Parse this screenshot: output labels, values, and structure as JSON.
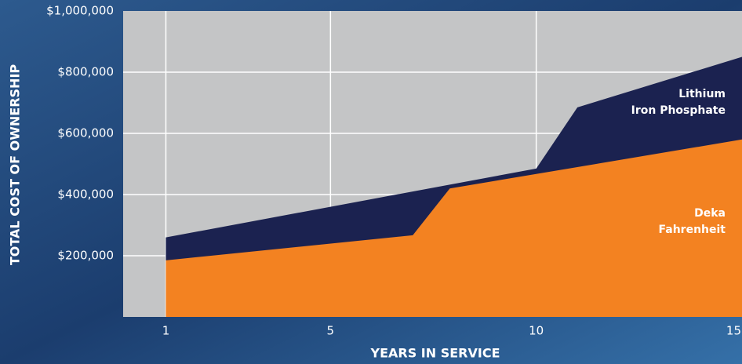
{
  "chart_data": {
    "type": "area",
    "x_label": "YEARS IN SERVICE",
    "y_label": "TOTAL COST OF OWNERSHIP",
    "xlim": [
      0,
      15
    ],
    "xticks": [
      1,
      5,
      10,
      15
    ],
    "ylim": [
      0,
      1000000
    ],
    "yticks": [
      {
        "value": 200000,
        "label": "$200,000"
      },
      {
        "value": 400000,
        "label": "$400,000"
      },
      {
        "value": 600000,
        "label": "$600,000"
      },
      {
        "value": 800000,
        "label": "$800,000"
      },
      {
        "value": 1000000,
        "label": "$1,000,000"
      }
    ],
    "grid": true,
    "series": [
      {
        "name": "Lithium\nIron Phosphate",
        "color": "#1b2250",
        "x": [
          1,
          10,
          11,
          15
        ],
        "values": [
          260000,
          485000,
          685000,
          850000
        ]
      },
      {
        "name": "Deka\nFahrenheit",
        "color": "#f38221",
        "x": [
          1,
          7,
          7.9,
          15
        ],
        "values": [
          185000,
          267000,
          420000,
          580000
        ]
      }
    ]
  }
}
